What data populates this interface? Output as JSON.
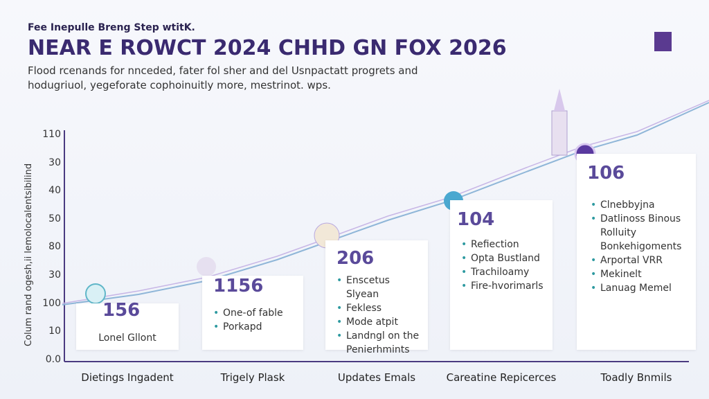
{
  "header": {
    "kicker": "Fee Inepulle Breng Step wtitK.",
    "title": "NEAR E ROWCT 2024 CHHD GN FOX 2026",
    "subtitle": [
      "Flood rcenands for nnceded, fater fol sher and del Usnpactatt progrets and",
      "hodugriuol, yegeforate cophoinuitly more, mestrinot. wps."
    ]
  },
  "axis": {
    "label": "Colum rand ogesh,ii lemolocalentsibilind",
    "ticks": [
      "110",
      "30",
      "40",
      "50",
      "80",
      "30",
      "100",
      "10",
      "0.0"
    ]
  },
  "cards": [
    {
      "value": "156",
      "items": [
        "Lonel Gllont"
      ],
      "category": "Dietings Ingadent"
    },
    {
      "value": "1156",
      "items": [
        "One-of fable",
        "Porkapd"
      ],
      "category": "Trigely Plask"
    },
    {
      "value": "206",
      "items": [
        "Enscetus Slyean",
        "Fekless",
        "Mode atpit",
        "Landngl on the Penierhmints"
      ],
      "category": "Updates Emals"
    },
    {
      "value": "104",
      "items": [
        "Refiection",
        "Opta Bustland",
        "Trachiloamy",
        "Fire-hvorimarls"
      ],
      "category": "Careatine Repicerces"
    },
    {
      "value": "106",
      "items": [
        "Clnebbyjna",
        "Datlinoss Binous Rolluity Bonkehigoments",
        "Arportal VRR",
        "Mekinelt",
        "Lanuag Memel"
      ],
      "category": "Toadly Bnmils"
    }
  ]
}
